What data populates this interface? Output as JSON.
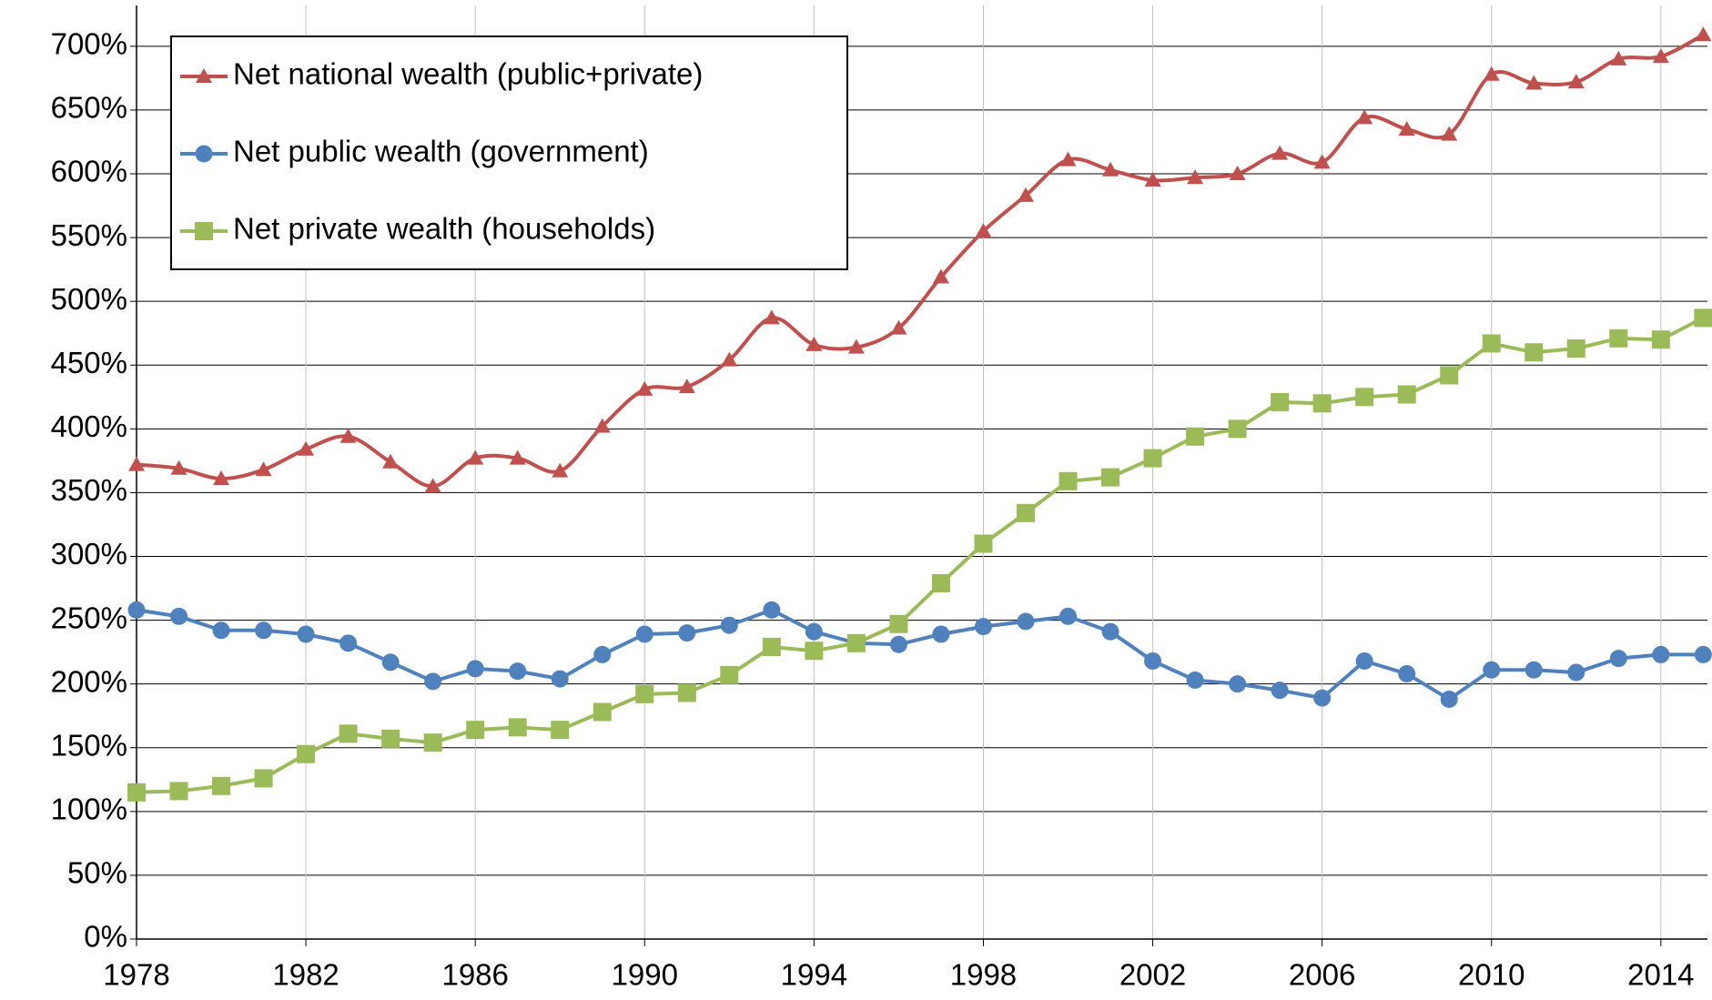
{
  "chart_data": {
    "type": "line",
    "x": [
      1978,
      1979,
      1980,
      1981,
      1982,
      1983,
      1984,
      1985,
      1986,
      1987,
      1988,
      1989,
      1990,
      1991,
      1992,
      1993,
      1994,
      1995,
      1996,
      1997,
      1998,
      1999,
      2000,
      2001,
      2002,
      2003,
      2004,
      2005,
      2006,
      2007,
      2008,
      2009,
      2010,
      2011,
      2012,
      2013,
      2014,
      2015
    ],
    "series": [
      {
        "name": "Net national wealth (public+private)",
        "color": "#c0504d",
        "marker": "triangle",
        "smooth": true,
        "values": [
          372,
          369,
          361,
          368,
          384,
          394,
          374,
          355,
          377,
          377,
          367,
          402,
          431,
          433,
          454,
          487,
          466,
          464,
          479,
          519,
          555,
          583,
          611,
          603,
          595,
          597,
          600,
          616,
          609,
          644,
          635,
          631,
          678,
          671,
          672,
          690,
          692,
          709
        ]
      },
      {
        "name": "Net public wealth (government)",
        "color": "#4f81bd",
        "marker": "circle",
        "smooth": false,
        "values": [
          258,
          253,
          242,
          242,
          239,
          232,
          217,
          202,
          212,
          210,
          204,
          223,
          239,
          240,
          246,
          258,
          241,
          232,
          231,
          239,
          245,
          249,
          253,
          241,
          218,
          203,
          200,
          195,
          189,
          218,
          208,
          188,
          211,
          211,
          209,
          220,
          223,
          223
        ]
      },
      {
        "name": "Net private wealth (households)",
        "color": "#9bbb59",
        "marker": "square",
        "smooth": false,
        "values": [
          115,
          116,
          120,
          126,
          145,
          161,
          157,
          154,
          164,
          166,
          164,
          178,
          192,
          193,
          207,
          229,
          226,
          232,
          247,
          279,
          310,
          334,
          359,
          362,
          377,
          394,
          400,
          421,
          420,
          425,
          427,
          442,
          467,
          460,
          463,
          471,
          470,
          487
        ]
      }
    ],
    "xlim": [
      1978,
      2015.1
    ],
    "xticks": [
      1978,
      1982,
      1986,
      1990,
      1994,
      1998,
      2002,
      2006,
      2010,
      2014
    ],
    "ylim": [
      0,
      732
    ],
    "yticks": [
      {
        "value": 0,
        "label": "0%"
      },
      {
        "value": 50,
        "label": "50%"
      },
      {
        "value": 100,
        "label": "100%"
      },
      {
        "value": 150,
        "label": "150%"
      },
      {
        "value": 200,
        "label": "200%"
      },
      {
        "value": 250,
        "label": "250%"
      },
      {
        "value": 300,
        "label": "300%"
      },
      {
        "value": 350,
        "label": "350%"
      },
      {
        "value": 400,
        "label": "400%"
      },
      {
        "value": 450,
        "label": "450%"
      },
      {
        "value": 500,
        "label": "500%"
      },
      {
        "value": 550,
        "label": "550%"
      },
      {
        "value": 600,
        "label": "600%"
      },
      {
        "value": 650,
        "label": "650%"
      },
      {
        "value": 700,
        "label": "700%"
      }
    ],
    "grid": true,
    "legend": "upper left"
  }
}
